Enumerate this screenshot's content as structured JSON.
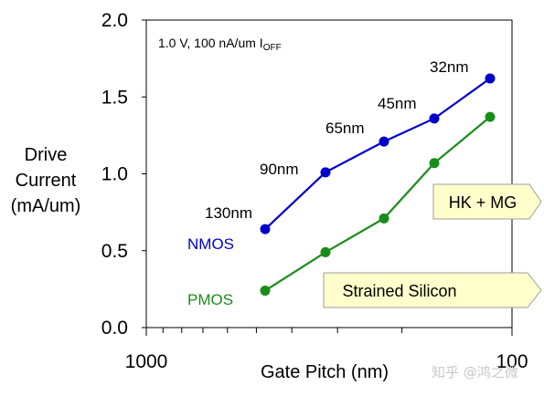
{
  "chart_data": {
    "type": "line",
    "ylabel_lines": [
      "Drive",
      "Current",
      "(mA/um)"
    ],
    "xlabel": "Gate Pitch (nm)",
    "x_scale": "log",
    "x_direction": "reversed",
    "xlim": [
      1000,
      100
    ],
    "x_tick_labels": [
      "1000",
      "100"
    ],
    "ylim": [
      0,
      2
    ],
    "y_tick_labels": [
      "0.0",
      "0.5",
      "1.0",
      "1.5",
      "2.0"
    ],
    "annotation_main": "1.0 V, 100 nA/um I",
    "annotation_sub": "OFF",
    "categories": [
      "130nm",
      "90nm",
      "65nm",
      "45nm",
      "32nm"
    ],
    "series": [
      {
        "name": "NMOS",
        "color": "#0000cc",
        "values": [
          0.64,
          1.01,
          1.21,
          1.36,
          1.62
        ]
      },
      {
        "name": "PMOS",
        "color": "#1a8c1a",
        "values": [
          0.24,
          0.49,
          0.71,
          1.07,
          1.37
        ]
      }
    ],
    "callouts": [
      {
        "text": "HK + MG",
        "fill": "#ffffcc"
      },
      {
        "text": "Strained Silicon",
        "fill": "#ffffcc"
      }
    ],
    "watermark": "知乎 @鸿之微"
  }
}
